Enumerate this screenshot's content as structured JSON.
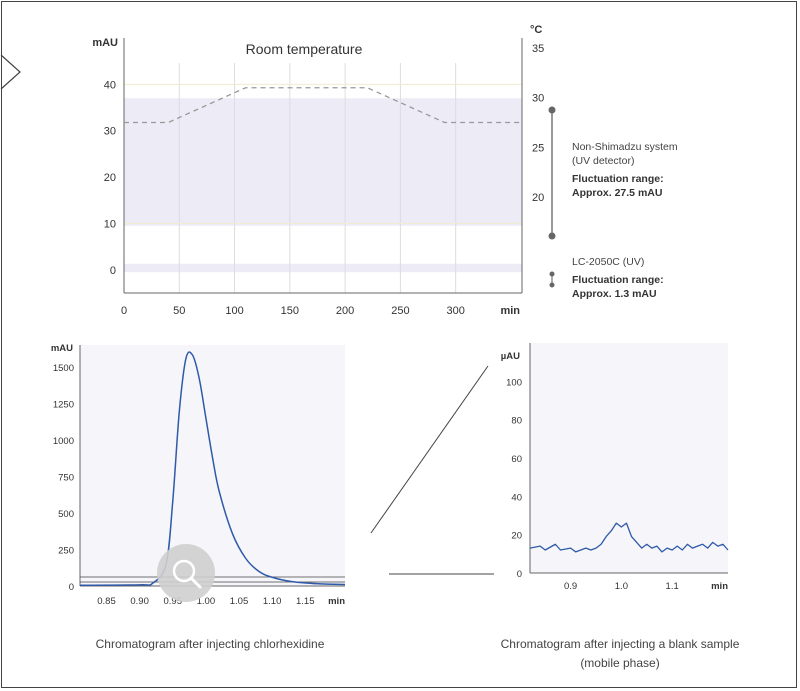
{
  "chart_data": [
    {
      "id": "top",
      "type": "line",
      "title": "Room temperature",
      "ylabel": "mAU",
      "y2label": "°C",
      "xlabel": "min",
      "xlim": [
        0,
        360
      ],
      "ylim": [
        -5,
        50
      ],
      "y2lim": [
        10,
        35
      ],
      "x_ticks": [
        0,
        50,
        100,
        150,
        200,
        250,
        300
      ],
      "y_ticks": [
        0,
        10,
        20,
        30,
        40
      ],
      "y2_ticks": [
        20,
        25,
        30,
        35
      ],
      "grid": true,
      "series": [
        {
          "name": "Room temperature",
          "axis": "right",
          "style": "dashed",
          "x": [
            0,
            40,
            110,
            220,
            290,
            360
          ],
          "y": [
            27.5,
            27.5,
            31.0,
            31.0,
            27.5,
            27.5
          ]
        }
      ],
      "bands": [
        {
          "axis": "left",
          "y": [
            9.5,
            37
          ],
          "label": "Non-Shimadzu system (UV detector)"
        },
        {
          "axis": "left",
          "y": [
            -0.5,
            1.3
          ],
          "label": "LC-2050C (UV)"
        }
      ],
      "annotations": {
        "non_shimadzu": {
          "line1": "Non-Shimadzu system",
          "line2": "(UV detector)",
          "line3": "Fluctuation range:",
          "line4": "Approx. 27.5 mAU"
        },
        "lc2050c": {
          "line1": "LC-2050C (UV)",
          "line3": "Fluctuation range:",
          "line4": "Approx. 1.3 mAU"
        }
      }
    },
    {
      "id": "left",
      "type": "line",
      "ylabel": "mAU",
      "xlabel": "min",
      "xlim": [
        0.81,
        1.21
      ],
      "ylim": [
        0,
        1650
      ],
      "x_ticks": [
        0.85,
        0.9,
        0.95,
        1.0,
        1.05,
        1.1,
        1.15
      ],
      "x_tick_labels": [
        "0.85",
        "0.90",
        "0.95",
        "1.00",
        "1.05",
        "1.10",
        "1.15"
      ],
      "y_ticks": [
        0,
        250,
        500,
        750,
        1000,
        1250,
        1500
      ],
      "series": [
        {
          "name": "",
          "x": [
            0.81,
            0.9,
            0.92,
            0.94,
            0.95,
            0.96,
            0.97,
            0.98,
            0.99,
            1.0,
            1.01,
            1.02,
            1.04,
            1.06,
            1.08,
            1.1,
            1.13,
            1.17,
            1.21
          ],
          "y": [
            5,
            8,
            20,
            150,
            580,
            1200,
            1560,
            1580,
            1420,
            1150,
            880,
            650,
            360,
            190,
            100,
            60,
            30,
            15,
            10
          ]
        }
      ],
      "caption": "Chromatogram after injecting chlorhexidine"
    },
    {
      "id": "right",
      "type": "line",
      "ylabel": "µAU",
      "xlabel": "min",
      "xlim": [
        0.82,
        1.21
      ],
      "ylim": [
        0,
        120
      ],
      "x_ticks": [
        0.9,
        1.0,
        1.1
      ],
      "x_tick_labels": [
        "0.9",
        "1.0",
        "1.1"
      ],
      "y_ticks": [
        0,
        20,
        40,
        60,
        80,
        100
      ],
      "series": [
        {
          "name": "",
          "x": [
            0.82,
            0.84,
            0.85,
            0.87,
            0.88,
            0.9,
            0.91,
            0.93,
            0.94,
            0.95,
            0.96,
            0.97,
            0.98,
            0.99,
            1.0,
            1.01,
            1.02,
            1.03,
            1.04,
            1.05,
            1.06,
            1.07,
            1.08,
            1.09,
            1.1,
            1.11,
            1.12,
            1.13,
            1.14,
            1.15,
            1.16,
            1.17,
            1.18,
            1.19,
            1.2,
            1.21
          ],
          "y": [
            13,
            14,
            12,
            15,
            12,
            13,
            11,
            13,
            12,
            13,
            15,
            19,
            22,
            26,
            24,
            26,
            19,
            16,
            13,
            15,
            13,
            14,
            11,
            13,
            12,
            14,
            12,
            15,
            13,
            14,
            15,
            13,
            16,
            14,
            15,
            12
          ]
        }
      ],
      "caption_line1": "Chromatogram after injecting a blank sample",
      "caption_line2": "(mobile phase)"
    }
  ],
  "zoom_icon": "magnifier-icon",
  "colors": {
    "line_blue": "#2f5aa8",
    "dashed_gray": "#999999",
    "band": "#ecebf6",
    "grid": "#dddddd",
    "axis": "#666666"
  }
}
